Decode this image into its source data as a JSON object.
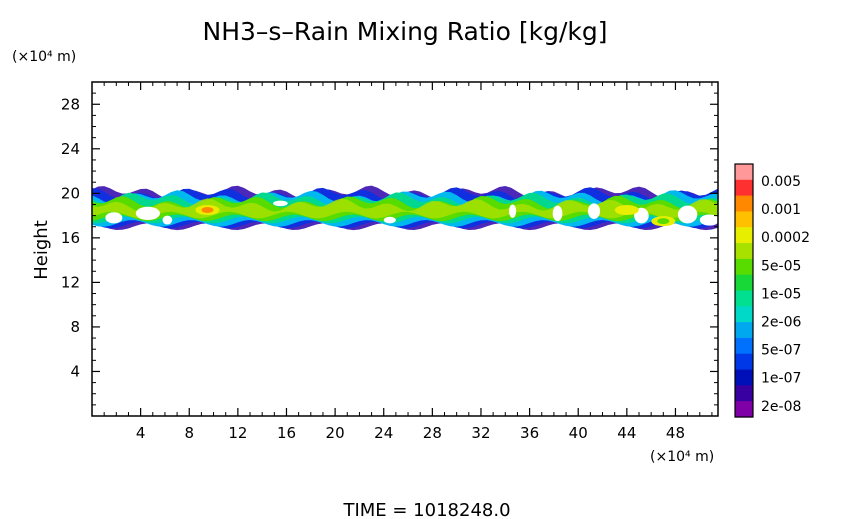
{
  "chart_data": {
    "type": "heatmap",
    "title": "NH3–s–Rain Mixing Ratio [kg/kg]",
    "ylabel": "Height",
    "y_unit": "(×10⁴ m)",
    "x_unit": "(×10⁴ m)",
    "xlim": [
      0,
      51.5
    ],
    "ylim": [
      0,
      30
    ],
    "x_ticks": [
      4,
      8,
      12,
      16,
      20,
      24,
      28,
      32,
      36,
      40,
      44,
      48
    ],
    "y_ticks": [
      4,
      8,
      12,
      16,
      20,
      24,
      28
    ],
    "grid": false,
    "footer": "TIME  =  1018248.0",
    "colorbar": {
      "labels": [
        "0.005",
        "0.001",
        "0.0002",
        "5e-05",
        "1e-05",
        "2e-06",
        "5e-07",
        "1e-07",
        "2e-08"
      ],
      "colors": [
        "#ff9999",
        "#ff3030",
        "#ff8800",
        "#ffc000",
        "#e8ee00",
        "#a8e000",
        "#58dc00",
        "#18d838",
        "#00e090",
        "#00d8c8",
        "#00a8f0",
        "#0070ff",
        "#0038e8",
        "#0010b8",
        "#3800a0",
        "#8000a8"
      ]
    },
    "layer": {
      "outer_band": [
        17.2,
        20.0
      ],
      "core_band": [
        17.6,
        19.2
      ],
      "hot_spots": [
        {
          "x": 9.5,
          "y": 18.5,
          "level": "0.0002"
        },
        {
          "x": 44,
          "y": 18.5,
          "level": "5e-05"
        },
        {
          "x": 47,
          "y": 17.5,
          "level": "1e-05"
        }
      ]
    }
  }
}
